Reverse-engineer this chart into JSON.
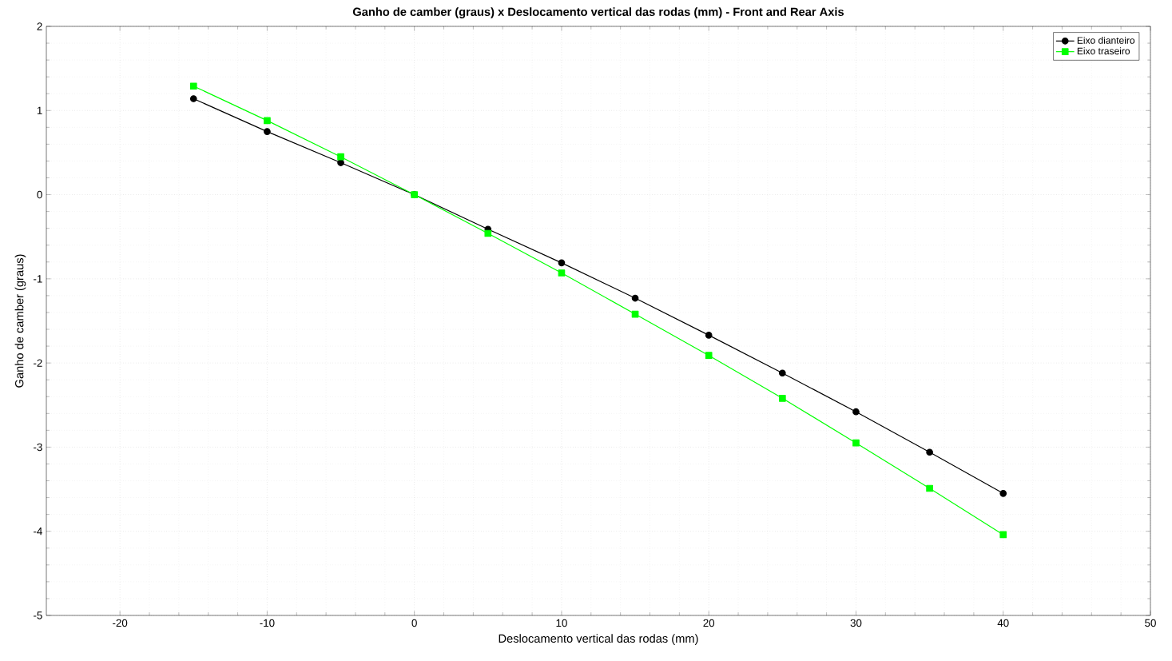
{
  "chart_data": {
    "type": "line",
    "title": "Ganho de camber (graus) x Deslocamento vertical das rodas (mm)    - Front and Rear Axis",
    "xlabel": "Deslocamento vertical das rodas (mm)",
    "ylabel": "Ganho de camber (graus)",
    "x": [
      -15,
      -10,
      -5,
      0,
      5,
      10,
      15,
      20,
      25,
      30,
      35,
      40
    ],
    "series": [
      {
        "name": "Eixo dianteiro",
        "color": "#000000",
        "marker": "circle",
        "values": [
          1.14,
          0.75,
          0.38,
          0,
          -0.41,
          -0.81,
          -1.23,
          -1.67,
          -2.12,
          -2.58,
          -3.06,
          -3.55
        ]
      },
      {
        "name": "Eixo traseiro",
        "color": "#00ff00",
        "marker": "square",
        "values": [
          1.29,
          0.88,
          0.45,
          0,
          -0.46,
          -0.93,
          -1.42,
          -1.91,
          -2.42,
          -2.95,
          -3.49,
          -4.04
        ]
      }
    ],
    "xlim": [
      -25,
      50
    ],
    "ylim": [
      -5,
      2
    ],
    "xticks": [
      -20,
      -10,
      0,
      10,
      20,
      30,
      40,
      50
    ],
    "yticks": [
      -5,
      -4,
      -3,
      -2,
      -1,
      0,
      1,
      2
    ],
    "grid": true,
    "legend": "top right"
  }
}
